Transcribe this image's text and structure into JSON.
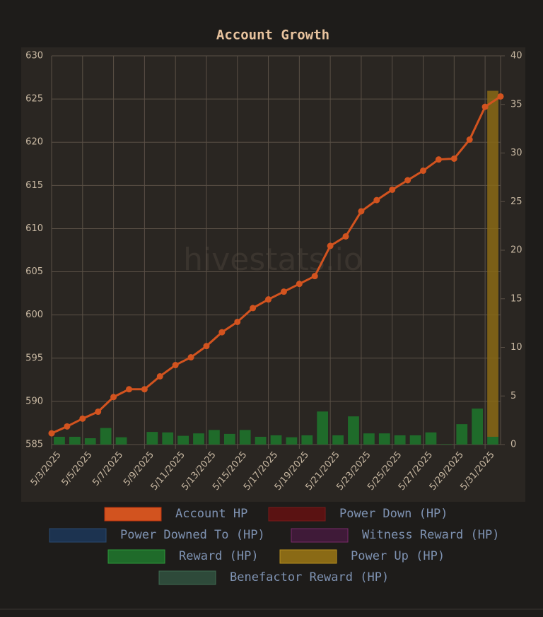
{
  "chart_data": {
    "type": "bar-line",
    "title": "Account Growth",
    "watermark": "hivestats.io",
    "categories": [
      "5/3/2025",
      null,
      "5/5/2025",
      null,
      "5/7/2025",
      null,
      "5/9/2025",
      null,
      "5/11/2025",
      null,
      "5/13/2025",
      null,
      "5/15/2025",
      null,
      "5/17/2025",
      null,
      "5/19/2025",
      null,
      "5/21/2025",
      null,
      "5/23/2025",
      null,
      "5/25/2025",
      null,
      "5/27/2025",
      null,
      "5/29/2025",
      null,
      "5/31/2025",
      null
    ],
    "series": [
      {
        "name": "Account HP",
        "color": "#d2531f",
        "kind": "line",
        "values": [
          586.3,
          587.1,
          588.0,
          588.8,
          590.5,
          591.4,
          591.4,
          592.9,
          594.2,
          595.1,
          596.4,
          598.0,
          599.2,
          600.8,
          601.8,
          602.7,
          603.6,
          604.5,
          608.0,
          609.1,
          612.0,
          613.3,
          614.5,
          615.6,
          616.7,
          618.0,
          618.1,
          620.3,
          624.1,
          625.3
        ]
      },
      {
        "name": "Power Down (HP)",
        "color": "#5a1212"
      },
      {
        "name": "Power Downed To (HP)",
        "color": "#1c3350"
      },
      {
        "name": "Witness Reward (HP)",
        "color": "#3f1a38"
      },
      {
        "name": "Reward (HP)",
        "color": "#1f6b2a",
        "kind": "bar",
        "axis": "y2",
        "values": [
          0.8,
          0.8,
          0.65,
          1.7,
          0.75,
          0,
          1.3,
          1.25,
          0.9,
          1.15,
          1.5,
          1.1,
          1.5,
          0.8,
          0.95,
          0.75,
          0.95,
          3.4,
          0.95,
          2.9,
          1.15,
          1.15,
          0.95,
          0.95,
          1.25,
          0.05,
          2.1,
          3.7,
          0.8,
          null
        ]
      },
      {
        "name": "Power Up (HP)",
        "color": "#8a6a15",
        "kind": "bar",
        "axis": "y2",
        "values": [
          0,
          0,
          0,
          0,
          0,
          0,
          0,
          0,
          0,
          0,
          0,
          0,
          0,
          0,
          0,
          0,
          0,
          0,
          0,
          0,
          0,
          0,
          0,
          0,
          0,
          0,
          0,
          0,
          35.6,
          null
        ]
      },
      {
        "name": "Benefactor Reward (HP)",
        "color": "#2e4a3a"
      }
    ],
    "ylim": [
      585,
      630
    ],
    "yticks": [
      585,
      590,
      595,
      600,
      605,
      610,
      615,
      620,
      625,
      630
    ],
    "y2lim": [
      0,
      40
    ],
    "y2ticks": [
      0,
      5,
      10,
      15,
      20,
      25,
      30,
      35,
      40
    ],
    "grid": true
  }
}
